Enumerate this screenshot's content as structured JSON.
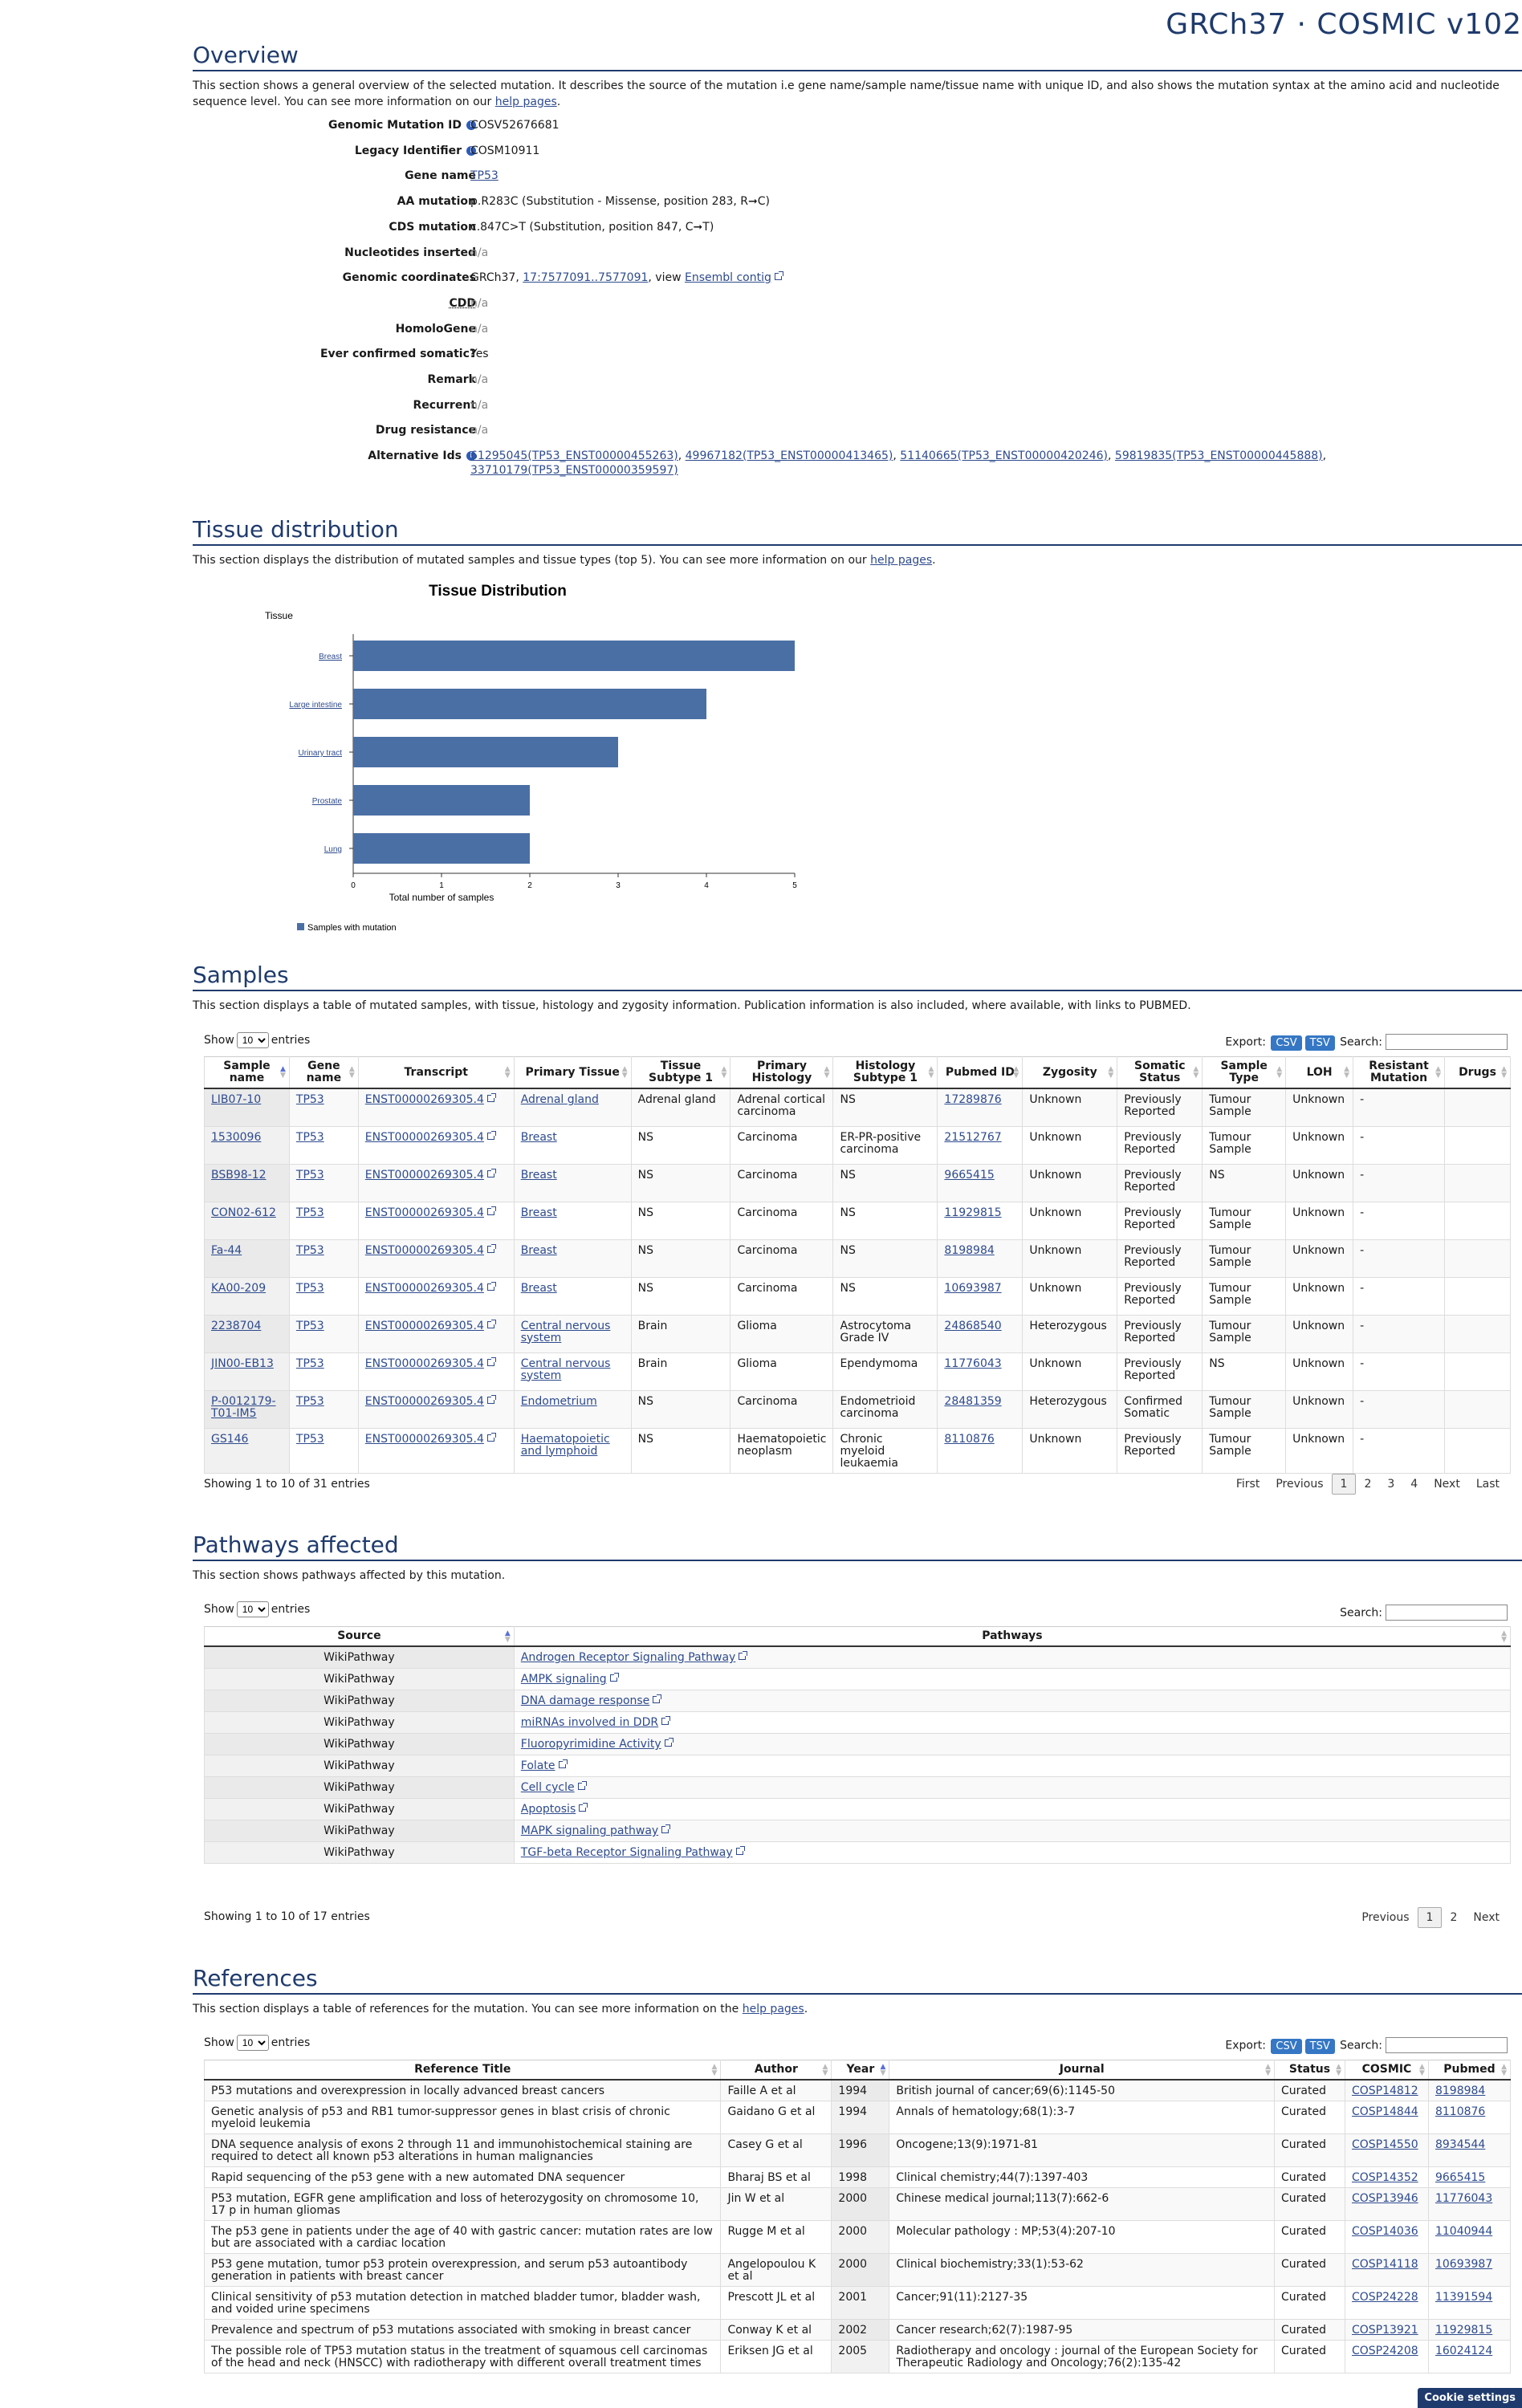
{
  "app_title": "GRCh37 · COSMIC v102",
  "overview": {
    "title": "Overview",
    "desc": "This section shows a general overview of the selected mutation. It describes the source of the mutation i.e gene name/sample name/tissue name with unique ID, and also shows the mutation syntax at the amino acid and nucleotide sequence level. You can see more information on our",
    "desc_link": "help pages",
    "rows": [
      {
        "label": "Genomic Mutation ID",
        "value": "COSV52676681",
        "info": true
      },
      {
        "label": "Legacy Identifier",
        "value": "COSM10911",
        "info": true
      },
      {
        "label": "Gene name",
        "value": "TP53",
        "link": true
      },
      {
        "label": "AA mutation",
        "value": "p.R283C (Substitution - Missense, position 283, R➞C)"
      },
      {
        "label": "CDS mutation",
        "value": "c.847C>T (Substitution, position 847, C➞T)"
      },
      {
        "label": "Nucleotides inserted",
        "value": "n/a",
        "na": true
      },
      {
        "label": "Genomic coordinates",
        "value": "GRCh37, ",
        "link_text": "17:7577091..7577091",
        "mid": ", view ",
        "link2": "Ensembl contig"
      },
      {
        "label": "CDD",
        "value": "n/a",
        "na": true,
        "under": true
      },
      {
        "label": "HomoloGene",
        "value": "n/a",
        "na": true
      },
      {
        "label": "Ever confirmed somatic?",
        "value": "Yes"
      },
      {
        "label": "Remark",
        "value": "n/a",
        "na": true
      },
      {
        "label": "Recurrent",
        "value": "n/a",
        "na": true
      },
      {
        "label": "Drug resistance",
        "value": "n/a",
        "na": true
      },
      {
        "label": "Alternative Ids",
        "value": "",
        "info": true
      }
    ],
    "alt_ids_line1": [
      "61295045(TP53_ENST00000455263)",
      "49967182(TP53_ENST00000413465)",
      "51140665(TP53_ENST00000420246)",
      "59819835(TP53_ENST00000445888)"
    ],
    "alt_ids_line2": "33710179(TP53_ENST00000359597)"
  },
  "tissue": {
    "title": "Tissue distribution",
    "desc": "This section displays the distribution of mutated samples and tissue types (top 5). You can see more information on our",
    "desc_link": "help pages"
  },
  "chart_data": {
    "type": "bar",
    "orientation": "horizontal",
    "title": "Tissue Distribution",
    "ylabel": "Tissue",
    "xlabel": "Total number of samples",
    "categories": [
      "Breast",
      "Large intestine",
      "Urinary tract",
      "Prostate",
      "Lung"
    ],
    "series": [
      {
        "name": "Samples with mutation",
        "values": [
          5,
          4,
          3,
          2,
          2
        ],
        "color": "#4a6fa5"
      }
    ],
    "xlim": [
      0,
      5
    ],
    "xticks": [
      0,
      1,
      2,
      3,
      4,
      5
    ],
    "grid": false,
    "legend": "bottom-left"
  },
  "samples": {
    "title": "Samples",
    "desc": "This section displays a table of mutated samples, with tissue, histology and zygosity information. Publication information is also included, where available, with links to PUBMED.",
    "show": "Show",
    "entries": "entries",
    "length": "10",
    "export": "Export:",
    "csv": "CSV",
    "tsv": "TSV",
    "search": "Search:",
    "headers": [
      "Sample name",
      "Gene name",
      "Transcript",
      "Primary Tissue",
      "Tissue Subtype 1",
      "Primary Histology",
      "Histology Subtype 1",
      "Pubmed ID",
      "Zygosity",
      "Somatic Status",
      "Sample Type",
      "LOH",
      "Resistant Mutation",
      "Drugs"
    ],
    "rows": [
      [
        "LIB07-10",
        "TP53",
        "ENST00000269305.4",
        "Adrenal gland",
        "Adrenal gland",
        "Adrenal cortical carcinoma",
        "NS",
        "17289876",
        "Unknown",
        "Previously Reported",
        "Tumour Sample",
        "Unknown",
        "-",
        ""
      ],
      [
        "1530096",
        "TP53",
        "ENST00000269305.4",
        "Breast",
        "NS",
        "Carcinoma",
        "ER-PR-positive carcinoma",
        "21512767",
        "Unknown",
        "Previously Reported",
        "Tumour Sample",
        "Unknown",
        "-",
        ""
      ],
      [
        "BSB98-12",
        "TP53",
        "ENST00000269305.4",
        "Breast",
        "NS",
        "Carcinoma",
        "NS",
        "9665415",
        "Unknown",
        "Previously Reported",
        "NS",
        "Unknown",
        "-",
        ""
      ],
      [
        "CON02-612",
        "TP53",
        "ENST00000269305.4",
        "Breast",
        "NS",
        "Carcinoma",
        "NS",
        "11929815",
        "Unknown",
        "Previously Reported",
        "Tumour Sample",
        "Unknown",
        "-",
        ""
      ],
      [
        "Fa-44",
        "TP53",
        "ENST00000269305.4",
        "Breast",
        "NS",
        "Carcinoma",
        "NS",
        "8198984",
        "Unknown",
        "Previously Reported",
        "Tumour Sample",
        "Unknown",
        "-",
        ""
      ],
      [
        "KA00-209",
        "TP53",
        "ENST00000269305.4",
        "Breast",
        "NS",
        "Carcinoma",
        "NS",
        "10693987",
        "Unknown",
        "Previously Reported",
        "Tumour Sample",
        "Unknown",
        "-",
        ""
      ],
      [
        "2238704",
        "TP53",
        "ENST00000269305.4",
        "Central nervous system",
        "Brain",
        "Glioma",
        "Astrocytoma Grade IV",
        "24868540",
        "Heterozygous",
        "Previously Reported",
        "Tumour Sample",
        "Unknown",
        "-",
        ""
      ],
      [
        "JIN00-EB13",
        "TP53",
        "ENST00000269305.4",
        "Central nervous system",
        "Brain",
        "Glioma",
        "Ependymoma",
        "11776043",
        "Unknown",
        "Previously Reported",
        "NS",
        "Unknown",
        "-",
        ""
      ],
      [
        "P-0012179-T01-IM5",
        "TP53",
        "ENST00000269305.4",
        "Endometrium",
        "NS",
        "Carcinoma",
        "Endometrioid carcinoma",
        "28481359",
        "Heterozygous",
        "Confirmed Somatic",
        "Tumour Sample",
        "Unknown",
        "-",
        ""
      ],
      [
        "GS146",
        "TP53",
        "ENST00000269305.4",
        "Haematopoietic and lymphoid",
        "NS",
        "Haematopoietic neoplasm",
        "Chronic myeloid leukaemia",
        "8110876",
        "Unknown",
        "Previously Reported",
        "Tumour Sample",
        "Unknown",
        "-",
        ""
      ]
    ],
    "info": "Showing 1 to 10 of 31 entries",
    "pager": [
      "First",
      "Previous",
      "1",
      "2",
      "3",
      "4",
      "Next",
      "Last"
    ]
  },
  "pathways": {
    "title": "Pathways affected",
    "desc": "This section shows pathways affected by this mutation.",
    "show": "Show",
    "entries": "entries",
    "length": "10",
    "search": "Search:",
    "headers": [
      "Source",
      "Pathways"
    ],
    "rows": [
      [
        "WikiPathway",
        "Androgen Receptor Signaling Pathway"
      ],
      [
        "WikiPathway",
        "AMPK signaling"
      ],
      [
        "WikiPathway",
        "DNA damage response"
      ],
      [
        "WikiPathway",
        "miRNAs involved in DDR"
      ],
      [
        "WikiPathway",
        "Fluoropyrimidine Activity"
      ],
      [
        "WikiPathway",
        "Folate"
      ],
      [
        "WikiPathway",
        "Cell cycle"
      ],
      [
        "WikiPathway",
        "Apoptosis"
      ],
      [
        "WikiPathway",
        "MAPK signaling pathway"
      ],
      [
        "WikiPathway",
        "TGF-beta Receptor Signaling Pathway"
      ]
    ],
    "info": "Showing 1 to 10 of 17 entries",
    "pager": [
      "Previous",
      "1",
      "2",
      "Next"
    ]
  },
  "references": {
    "title": "References",
    "desc": "This section displays a table of references for the mutation. You can see more information on the",
    "desc_link": "help pages",
    "show": "Show",
    "entries": "entries",
    "length": "10",
    "export": "Export:",
    "csv": "CSV",
    "tsv": "TSV",
    "search": "Search:",
    "headers": [
      "Reference Title",
      "Author",
      "Year",
      "Journal",
      "Status",
      "COSMIC",
      "Pubmed"
    ],
    "rows": [
      [
        "P53 mutations and overexpression in locally advanced breast cancers",
        "Faille A et al",
        "1994",
        "British journal of cancer;69(6):1145-50",
        "Curated",
        "COSP14812",
        "8198984"
      ],
      [
        "Genetic analysis of p53 and RB1 tumor-suppressor genes in blast crisis of chronic myeloid leukemia",
        "Gaidano G et al",
        "1994",
        "Annals of hematology;68(1):3-7",
        "Curated",
        "COSP14844",
        "8110876"
      ],
      [
        "DNA sequence analysis of exons 2 through 11 and immunohistochemical staining are required to detect all known p53 alterations in human malignancies",
        "Casey G et al",
        "1996",
        "Oncogene;13(9):1971-81",
        "Curated",
        "COSP14550",
        "8934544"
      ],
      [
        "Rapid sequencing of the p53 gene with a new automated DNA sequencer",
        "Bharaj BS et al",
        "1998",
        "Clinical chemistry;44(7):1397-403",
        "Curated",
        "COSP14352",
        "9665415"
      ],
      [
        "P53 mutation, EGFR gene amplification and loss of heterozygosity on chromosome 10, 17 p in human gliomas",
        "Jin W et al",
        "2000",
        "Chinese medical journal;113(7):662-6",
        "Curated",
        "COSP13946",
        "11776043"
      ],
      [
        "The p53 gene in patients under the age of 40 with gastric cancer: mutation rates are low but are associated with a cardiac location",
        "Rugge M et al",
        "2000",
        "Molecular pathology : MP;53(4):207-10",
        "Curated",
        "COSP14036",
        "11040944"
      ],
      [
        "P53 gene mutation, tumor p53 protein overexpression, and serum p53 autoantibody generation in patients with breast cancer",
        "Angelopoulou K et al",
        "2000",
        "Clinical biochemistry;33(1):53-62",
        "Curated",
        "COSP14118",
        "10693987"
      ],
      [
        "Clinical sensitivity of p53 mutation detection in matched bladder tumor, bladder wash, and voided urine specimens",
        "Prescott JL et al",
        "2001",
        "Cancer;91(11):2127-35",
        "Curated",
        "COSP24228",
        "11391594"
      ],
      [
        "Prevalence and spectrum of p53 mutations associated with smoking in breast cancer",
        "Conway K et al",
        "2002",
        "Cancer research;62(7):1987-95",
        "Curated",
        "COSP13921",
        "11929815"
      ],
      [
        "The possible role of TP53 mutation status in the treatment of squamous cell carcinomas of the head and neck (HNSCC) with radiotherapy with different overall treatment times",
        "Eriksen JG et al",
        "2005",
        "Radiotherapy and oncology : journal of the European Society for Therapeutic Radiology and Oncology;76(2):135-42",
        "Curated",
        "COSP24208",
        "16024124"
      ]
    ]
  },
  "cookie_button": "Cookie settings"
}
